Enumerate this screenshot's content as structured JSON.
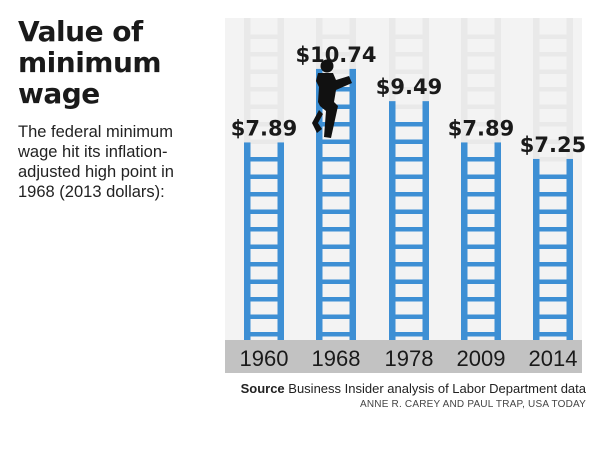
{
  "header": {
    "title": "Value of minimum wage",
    "subtitle": "The federal minimum wage hit its inflation-adjusted high point in 1968 (2013 dollars):"
  },
  "chart_data": {
    "type": "bar",
    "categories": [
      "1960",
      "1968",
      "1978",
      "2009",
      "2014"
    ],
    "values": [
      7.89,
      10.74,
      9.49,
      7.89,
      7.25
    ],
    "labels": [
      "$7.89",
      "$10.74",
      "$9.49",
      "$7.89",
      "$7.25"
    ],
    "title": "Value of minimum wage",
    "xlabel": "",
    "ylabel": "",
    "ylim": [
      0,
      12
    ],
    "grid": false,
    "legend": "none"
  },
  "footer": {
    "source_label": "Source",
    "source_text": "Business Insider analysis of Labor Department data",
    "credit": "ANNE R. CAREY AND PAUL TRAP, USA TODAY"
  },
  "colors": {
    "bar": "#3d8fd4",
    "ghost": "#e9e9e9",
    "panel": "#f3f3f3",
    "axis_band": "#c2c2c2",
    "text": "#1a1a1a"
  },
  "icons": {
    "climber": "person-climbing-icon"
  }
}
